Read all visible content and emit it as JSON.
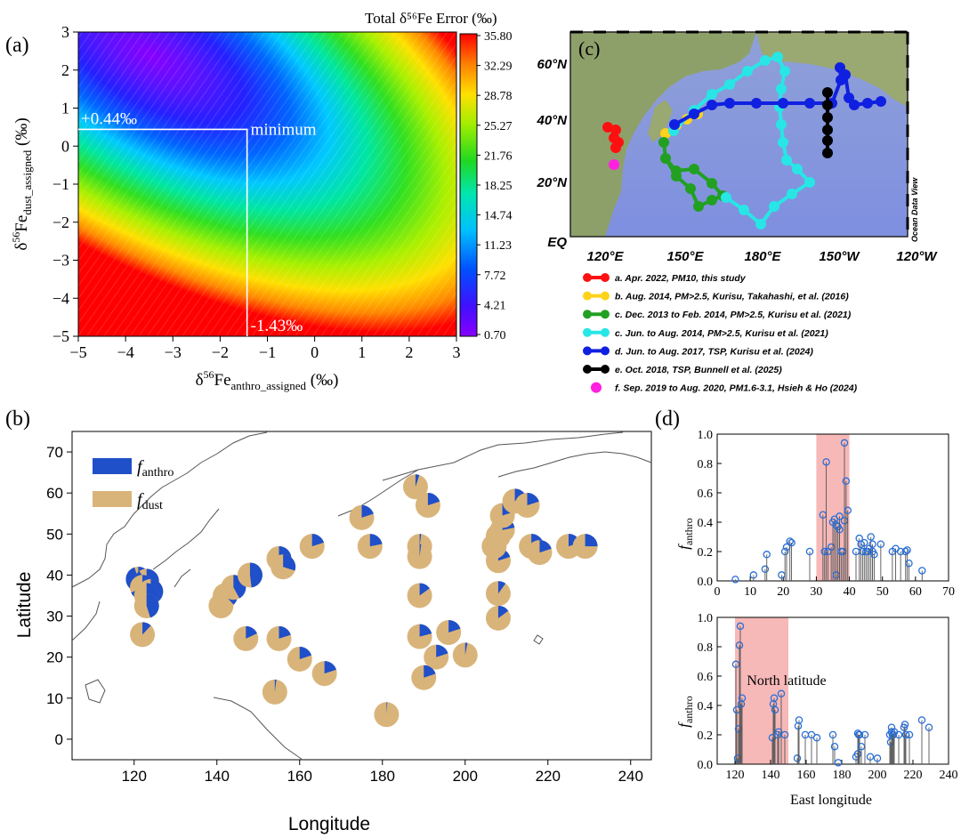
{
  "panels": {
    "a": {
      "label": "(a)",
      "colorbar_title": "Total δ⁵⁶Fe Error (‰)",
      "colorbar_ticks": [
        "35.80",
        "32.29",
        "28.78",
        "25.27",
        "21.76",
        "18.25",
        "14.74",
        "11.23",
        "7.72",
        "4.21",
        "0.70"
      ],
      "x_ticks": [
        "−5",
        "−4",
        "−3",
        "−2",
        "−1",
        "0",
        "1",
        "2",
        "3"
      ],
      "y_ticks": [
        "3",
        "2",
        "1",
        "0",
        "−1",
        "−2",
        "−3",
        "−4",
        "−5"
      ],
      "xlabel_pre": "δ",
      "xlabel_sup": "56",
      "xlabel_base": "Fe",
      "xlabel_sub": "anthro_assigned",
      "xlabel_unit": " (‰)",
      "ylabel_pre": "δ",
      "ylabel_sup": "56",
      "ylabel_base": "Fe",
      "ylabel_sub": "dust_assigned",
      "ylabel_unit": " (‰)",
      "annot_y": "+0.44‰",
      "annot_x": "-1.43‰",
      "annot_min": "minimum",
      "gridlines": false,
      "colors": {
        "map_low": "#8800ff",
        "map_high": "#ff0000"
      }
    },
    "c": {
      "label": "(c)",
      "lat_labels": [
        "60°N",
        "40°N",
        "20°N",
        "EQ"
      ],
      "lon_labels": [
        "120°E",
        "150°E",
        "180°E",
        "150°W",
        "120°W"
      ],
      "watermark": "Ocean Data View",
      "legend": [
        {
          "text": "a. Apr. 2022, PM10, this study",
          "color": "#ff1010"
        },
        {
          "text": "b. Aug. 2014, PM>2.5, Kurisu, Takahashi, et al. (2016)",
          "color": "#ffd21a"
        },
        {
          "text": "c. Dec. 2013 to Feb. 2014, PM>2.5, Kurisu et al. (2021)",
          "color": "#22a022"
        },
        {
          "text": "c. Jun. to Aug. 2014, PM>2.5, Kurisu et al. (2021)",
          "color": "#28e6e6"
        },
        {
          "text": "d. Jun. to Aug. 2017, TSP, Kurisu et al. (2024)",
          "color": "#1020e0"
        },
        {
          "text": "e. Oct. 2018, TSP, Bunnell et al. (2025)",
          "color": "#000000"
        },
        {
          "text": "f. Sep. 2019 to Aug. 2020, PM1.6-3.1, Hsieh & Ho (2024)",
          "color": "#ff20e0"
        }
      ]
    },
    "b": {
      "label": "(b)",
      "xlabel": "Longitude",
      "ylabel": "Latitude",
      "x_ticks": [
        "120",
        "140",
        "160",
        "180",
        "200",
        "220",
        "240"
      ],
      "y_ticks": [
        "0",
        "10",
        "20",
        "30",
        "40",
        "50",
        "60",
        "70"
      ],
      "legend_anthro_base": "f",
      "legend_anthro_sub": "anthro",
      "legend_dust_base": "f",
      "legend_dust_sub": "dust",
      "colors": {
        "anthro": "#1f4fc9",
        "dust": "#d9b47a"
      }
    },
    "d": {
      "label": "(d)",
      "ylabel_base": "f",
      "ylabel_sub": "anthro",
      "top_xlabel": "North latitude",
      "bottom_xlabel": "East longitude",
      "top_x_ticks": [
        "0",
        "10",
        "20",
        "30",
        "40",
        "50",
        "60",
        "70"
      ],
      "bottom_x_ticks": [
        "120",
        "140",
        "160",
        "180",
        "200",
        "220",
        "240"
      ],
      "y_ticks": [
        "0.0",
        "0.2",
        "0.4",
        "0.6",
        "0.8",
        "1.0"
      ],
      "highlight_color": "#f4a0a0"
    }
  },
  "chart_data": [
    {
      "type": "heatmap",
      "title": "Total δ56Fe Error (‰)",
      "xlabel": "δ56Fe anthro_assigned (‰)",
      "ylabel": "δ56Fe dust_assigned (‰)",
      "xlim": [
        -5,
        3
      ],
      "ylim": [
        -5,
        3
      ],
      "zlim": [
        0.7,
        35.8
      ],
      "minimum": {
        "x": -1.43,
        "y": 0.44
      }
    },
    {
      "type": "scatter",
      "title": "",
      "xlabel": "Longitude",
      "ylabel": "Latitude",
      "xlim": [
        105,
        245
      ],
      "ylim": [
        -5,
        75
      ],
      "series": [
        {
          "name": "f_anthro / f_dust pies",
          "points": [
            {
              "lon": 121,
              "lat": 39,
              "f": 0.95
            },
            {
              "lon": 123,
              "lat": 38.5,
              "f": 0.9
            },
            {
              "lon": 122,
              "lat": 37,
              "f": 0.68
            },
            {
              "lon": 124,
              "lat": 36,
              "f": 0.42
            },
            {
              "lon": 123,
              "lat": 35,
              "f": 0.4
            },
            {
              "lon": 123,
              "lat": 32.5,
              "f": 0.45
            },
            {
              "lon": 122,
              "lat": 25.5,
              "f": 0.12
            },
            {
              "lon": 141,
              "lat": 32.5,
              "f": 0.18
            },
            {
              "lon": 142,
              "lat": 35,
              "f": 0.38
            },
            {
              "lon": 144,
              "lat": 37,
              "f": 0.42
            },
            {
              "lon": 148,
              "lat": 40,
              "f": 0.48
            },
            {
              "lon": 155,
              "lat": 44,
              "f": 0.4
            },
            {
              "lon": 156,
              "lat": 42,
              "f": 0.3
            },
            {
              "lon": 163,
              "lat": 47,
              "f": 0.2
            },
            {
              "lon": 175,
              "lat": 54,
              "f": 0.2
            },
            {
              "lon": 177,
              "lat": 47,
              "f": 0.22
            },
            {
              "lon": 188,
              "lat": 61.5,
              "f": 0.05
            },
            {
              "lon": 191,
              "lat": 57,
              "f": 0.2
            },
            {
              "lon": 189,
              "lat": 47,
              "f": 0.02
            },
            {
              "lon": 189,
              "lat": 44.5,
              "f": 0.02
            },
            {
              "lon": 189,
              "lat": 35,
              "f": 0.15
            },
            {
              "lon": 189,
              "lat": 25,
              "f": 0.21
            },
            {
              "lon": 196,
              "lat": 26,
              "f": 0.2
            },
            {
              "lon": 193,
              "lat": 20,
              "f": 0.2
            },
            {
              "lon": 200,
              "lat": 20.5,
              "f": 0.03
            },
            {
              "lon": 190,
              "lat": 15,
              "f": 0.2
            },
            {
              "lon": 181,
              "lat": 6,
              "f": 0.01
            },
            {
              "lon": 154,
              "lat": 11.5,
              "f": 0.02
            },
            {
              "lon": 155,
              "lat": 24.5,
              "f": 0.2
            },
            {
              "lon": 160,
              "lat": 19.5,
              "f": 0.2
            },
            {
              "lon": 166,
              "lat": 16,
              "f": 0.2
            },
            {
              "lon": 147,
              "lat": 24.5,
              "f": 0.18
            },
            {
              "lon": 208,
              "lat": 29.5,
              "f": 0.15
            },
            {
              "lon": 208,
              "lat": 35.5,
              "f": 0.1
            },
            {
              "lon": 208,
              "lat": 43.5,
              "f": 0.2
            },
            {
              "lon": 207,
              "lat": 47,
              "f": 0.2
            },
            {
              "lon": 208,
              "lat": 49.5,
              "f": 0.22
            },
            {
              "lon": 209,
              "lat": 51,
              "f": 0.22
            },
            {
              "lon": 209,
              "lat": 54.5,
              "f": 0.2
            },
            {
              "lon": 212,
              "lat": 58,
              "f": 0.18
            },
            {
              "lon": 215,
              "lat": 57,
              "f": 0.2
            },
            {
              "lon": 216,
              "lat": 47,
              "f": 0.2
            },
            {
              "lon": 218,
              "lat": 45.5,
              "f": 0.2
            },
            {
              "lon": 225,
              "lat": 47,
              "f": 0.2
            },
            {
              "lon": 229,
              "lat": 47,
              "f": 0.25
            }
          ]
        }
      ]
    },
    {
      "type": "scatter",
      "title": "",
      "xlabel": "North latitude",
      "ylabel": "f_anthro",
      "xlim": [
        0,
        70
      ],
      "ylim": [
        0,
        1.0
      ],
      "highlight_x": [
        30,
        40
      ],
      "series": [
        {
          "name": "",
          "x": [
            5.5,
            11,
            14.5,
            15,
            19.5,
            20.5,
            21,
            22,
            22.5,
            28,
            32,
            32.5,
            33,
            33.5,
            34.5,
            35,
            35.5,
            36,
            36,
            36.5,
            37,
            37,
            37.5,
            38,
            38.5,
            38.5,
            39,
            39.5,
            42,
            43,
            43.5,
            44,
            44.5,
            45,
            45.5,
            46,
            46.5,
            47,
            47,
            47.5,
            49.5,
            53,
            54,
            55.5,
            57,
            57.5,
            58,
            62
          ],
          "y": [
            0.01,
            0.04,
            0.08,
            0.18,
            0.04,
            0.2,
            0.23,
            0.27,
            0.26,
            0.2,
            0.45,
            0.2,
            0.81,
            0.2,
            0.23,
            0.4,
            0.42,
            0.38,
            0.04,
            0.37,
            0.44,
            0.35,
            0.2,
            0.2,
            0.94,
            0.41,
            0.68,
            0.48,
            0.2,
            0.29,
            0.25,
            0.2,
            0.26,
            0.2,
            0.2,
            0.22,
            0.3,
            0.25,
            0.2,
            0.18,
            0.25,
            0.2,
            0.22,
            0.2,
            0.2,
            0.21,
            0.12,
            0.07
          ]
        }
      ]
    },
    {
      "type": "scatter",
      "title": "",
      "xlabel": "East longitude",
      "ylabel": "f_anthro",
      "xlim": [
        110,
        240
      ],
      "ylim": [
        0,
        1.0
      ],
      "highlight_x": [
        120,
        150
      ],
      "series": [
        {
          "name": "",
          "x": [
            120.5,
            121,
            121.5,
            122,
            122.5,
            123,
            123.5,
            124,
            141,
            141.5,
            142,
            142.5,
            144,
            144.5,
            146,
            148,
            155,
            155.5,
            156,
            159.5,
            163,
            166,
            175,
            176,
            178,
            188,
            189,
            189,
            189.5,
            190,
            191,
            193,
            196,
            200,
            207,
            207.5,
            208,
            208,
            208.5,
            209,
            209.5,
            212,
            215,
            215.5,
            216,
            218,
            225,
            229
          ],
          "y": [
            0.68,
            0.37,
            0.04,
            0.24,
            0.81,
            0.94,
            0.41,
            0.45,
            0.18,
            0.41,
            0.45,
            0.37,
            0.2,
            0.22,
            0.48,
            0.2,
            0.04,
            0.26,
            0.3,
            0.2,
            0.2,
            0.18,
            0.2,
            0.12,
            0.01,
            0.05,
            0.21,
            0.07,
            0.2,
            0.2,
            0.12,
            0.2,
            0.05,
            0.04,
            0.2,
            0.15,
            0.22,
            0.25,
            0.2,
            0.2,
            0.22,
            0.2,
            0.25,
            0.27,
            0.2,
            0.2,
            0.3,
            0.25
          ]
        }
      ]
    }
  ]
}
